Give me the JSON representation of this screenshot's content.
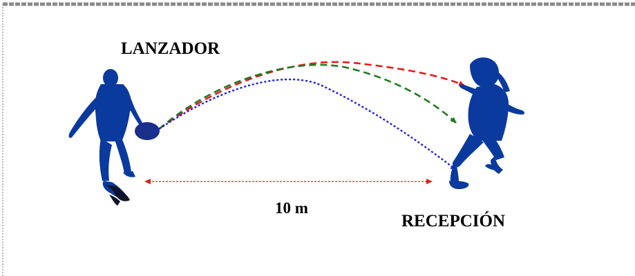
{
  "labels": {
    "thrower": "LANZADOR",
    "receiver": "RECEPCIÓN",
    "distance": "10 m"
  },
  "colors": {
    "figure": "#0a3a9e",
    "disc": "#1a2e8c",
    "trajectory_high": "#e8191a",
    "trajectory_mid": "#1f7a1f",
    "trajectory_low": "#1a1aee",
    "distance_line": "#e8191a",
    "border": "#7a7a7a"
  },
  "icons": {
    "thrower": "thrower-silhouette",
    "receiver": "receiver-silhouette",
    "disc": "frisbee-disc"
  }
}
